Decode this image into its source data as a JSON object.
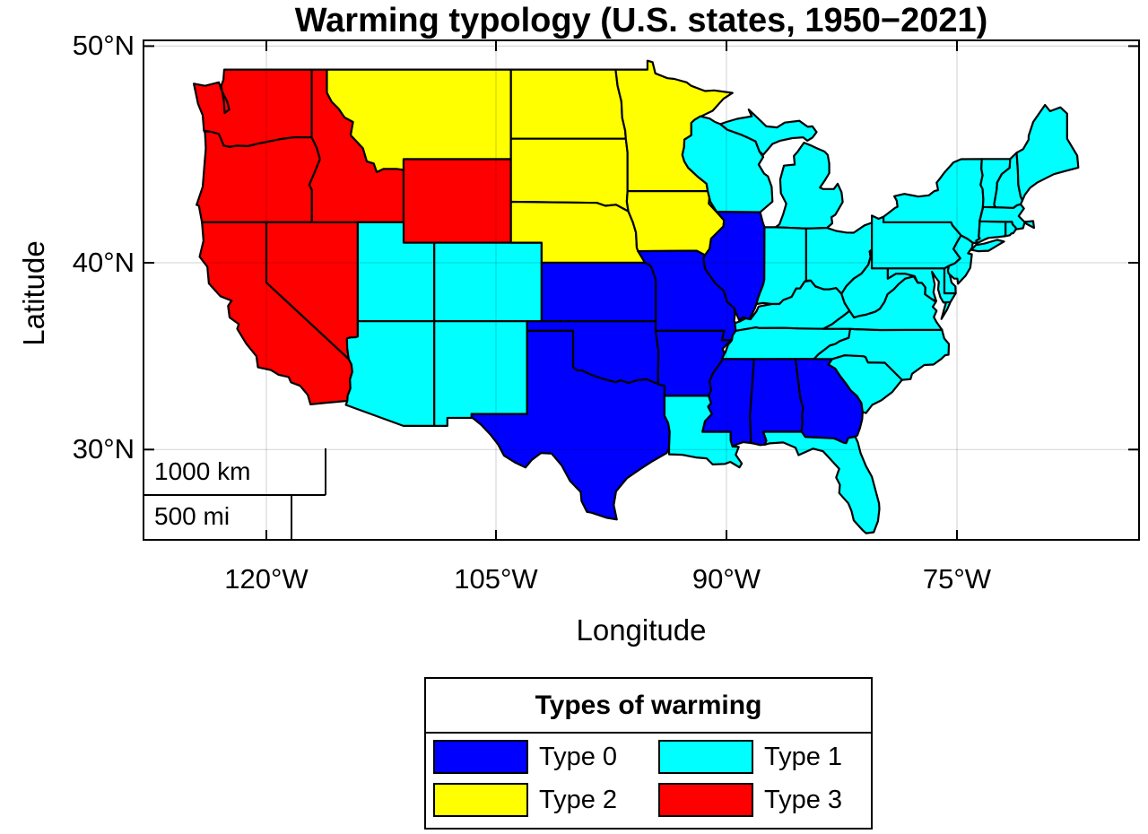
{
  "chart_data": {
    "type": "choropleth",
    "title": "Warming typology (U.S. states, 1950−2021)",
    "xlabel": "Longitude",
    "ylabel": "Latitude",
    "x_ticks": [
      "120°W",
      "105°W",
      "90°W",
      "75°W"
    ],
    "y_ticks": [
      "50°N",
      "40°N",
      "30°N"
    ],
    "x_range": [
      "128°W",
      "63°W"
    ],
    "y_range": [
      "25°N",
      "50.3°N"
    ],
    "grid": true,
    "legend_title": "Types of warming",
    "legend_position": "below axes, centered",
    "scalebar": {
      "km_label": "1000 km",
      "mi_label": "500 mi"
    },
    "classes": [
      {
        "label": "Type 0",
        "color": "#0000ff",
        "states": [
          "KS",
          "OK",
          "TX",
          "MO",
          "AR",
          "IL",
          "MS",
          "AL",
          "GA"
        ]
      },
      {
        "label": "Type 1",
        "color": "#00ffff",
        "states": [
          "AZ",
          "NM",
          "UT",
          "CO",
          "WI",
          "MI",
          "IN",
          "OH",
          "KY",
          "TN",
          "LA",
          "FL",
          "SC",
          "NC",
          "VA",
          "WV",
          "MD",
          "DE",
          "NJ",
          "PA",
          "NY",
          "CT",
          "RI",
          "MA",
          "VT",
          "NH",
          "ME"
        ]
      },
      {
        "label": "Type 2",
        "color": "#ffff00",
        "states": [
          "MT",
          "ND",
          "SD",
          "NE",
          "MN",
          "IA"
        ]
      },
      {
        "label": "Type 3",
        "color": "#ff0000",
        "states": [
          "WA",
          "OR",
          "CA",
          "NV",
          "ID",
          "WY"
        ]
      }
    ]
  }
}
